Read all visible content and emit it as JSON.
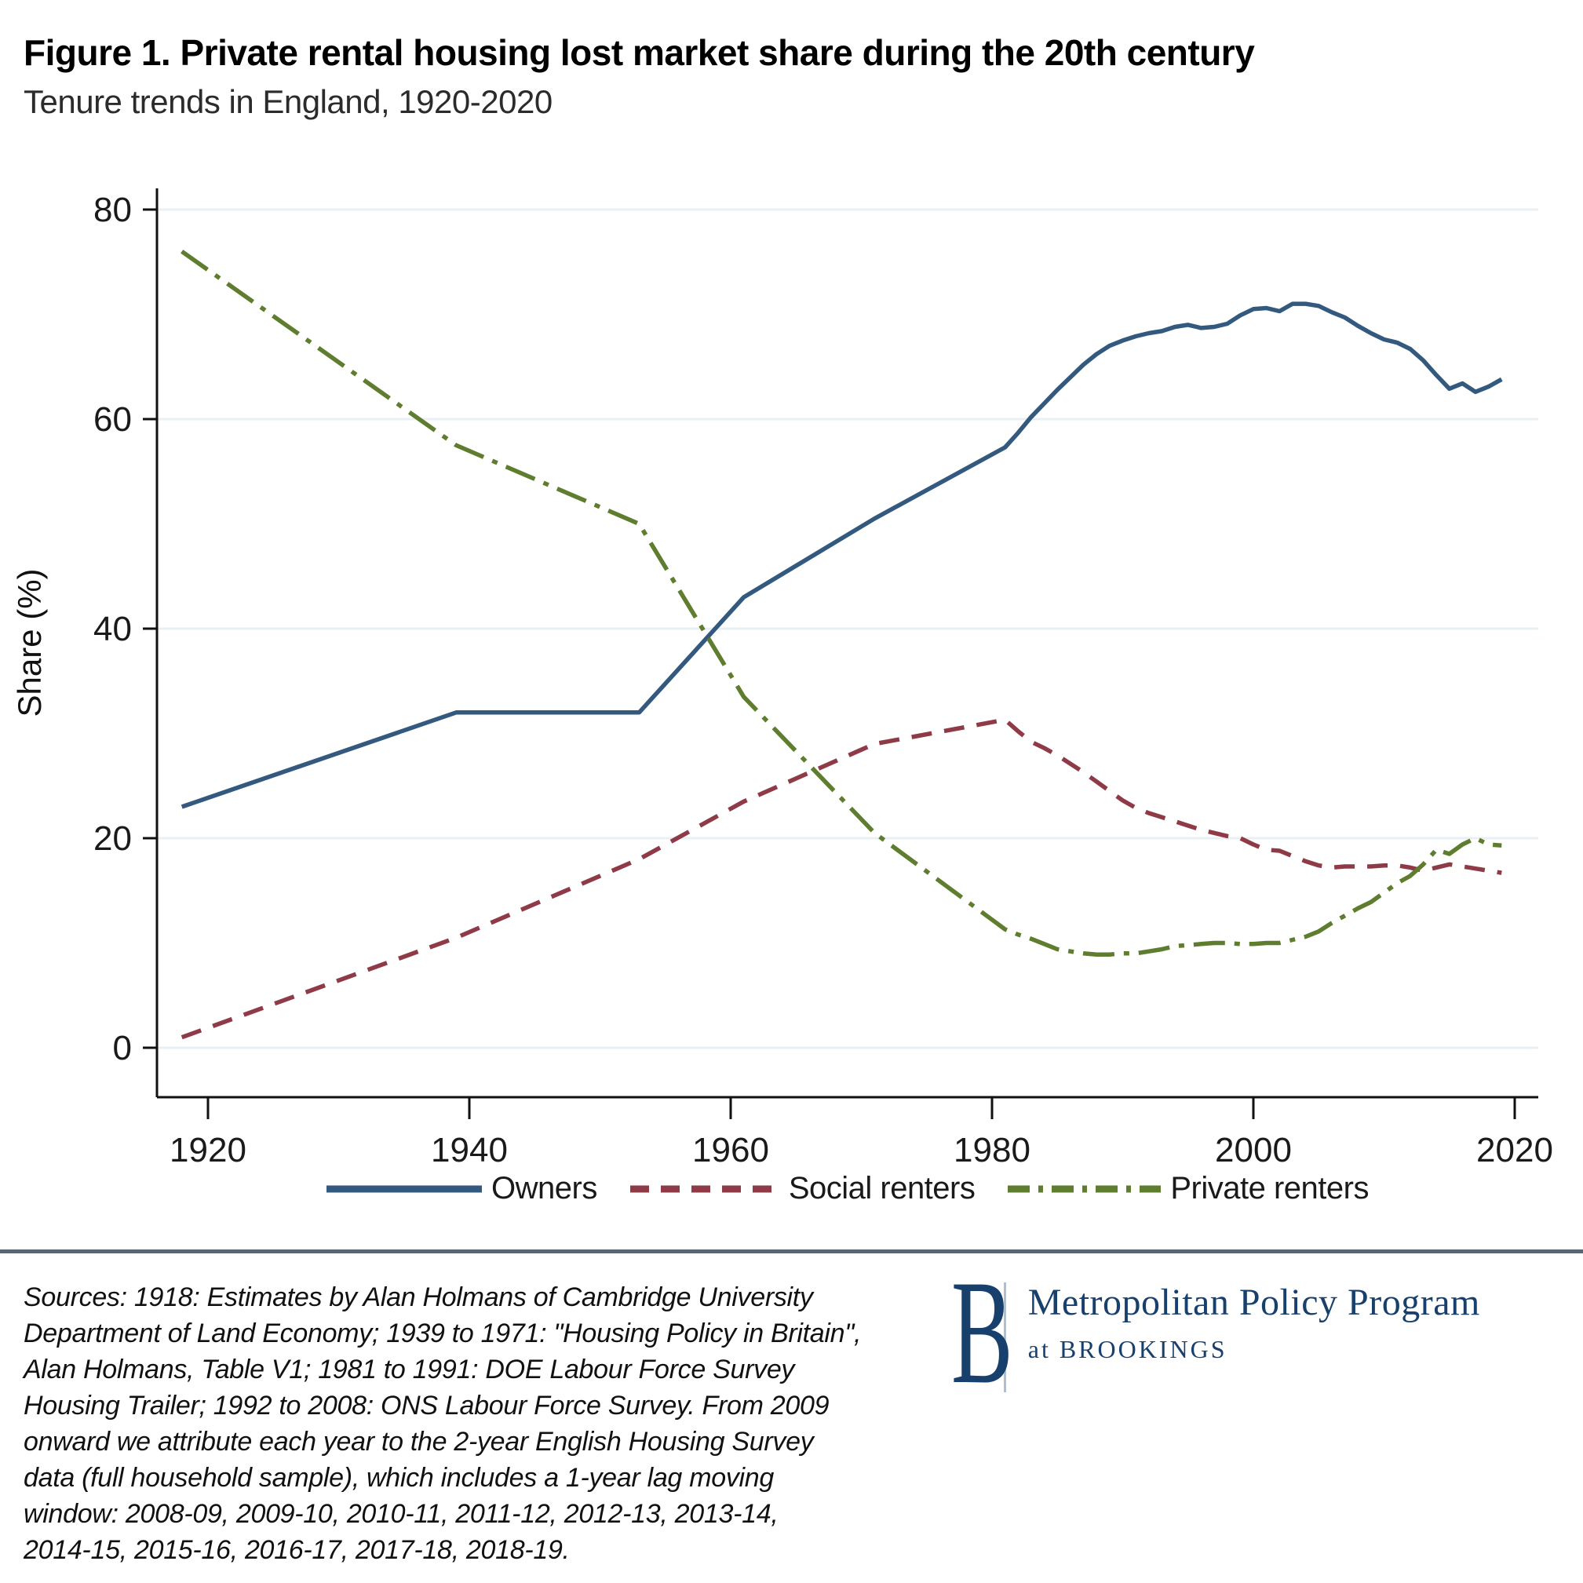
{
  "header": {
    "title": "Figure 1. Private rental housing lost market share during the 20th century",
    "subtitle": "Tenure trends in England, 1920-2020"
  },
  "chart_data": {
    "type": "line",
    "title": "Figure 1. Private rental housing lost market share during the 20th century",
    "subtitle": "Tenure trends in England, 1920-2020",
    "xlabel": "",
    "ylabel": "Share (%)",
    "x_ticks": [
      1920,
      1940,
      1960,
      1980,
      2000,
      2020
    ],
    "y_ticks": [
      0,
      20,
      40,
      60,
      80
    ],
    "xlim": [
      1916,
      2022
    ],
    "ylim": [
      0,
      80
    ],
    "grid": "horizontal-gridlines",
    "legend_position": "bottom",
    "colors": {
      "owners": "#33597f",
      "social_renters": "#8e3b47",
      "private_renters": "#5e7d2e",
      "gridline": "#e8f0f4",
      "axis": "#111111"
    },
    "series": [
      {
        "name": "Owners",
        "color": "#33597f",
        "style": "solid",
        "points": [
          [
            1918,
            23
          ],
          [
            1939,
            32
          ],
          [
            1953,
            32
          ],
          [
            1961,
            43
          ],
          [
            1971,
            50.5
          ],
          [
            1981,
            57.3
          ],
          [
            1982,
            58.7
          ],
          [
            1983,
            60.2
          ],
          [
            1984,
            61.5
          ],
          [
            1985,
            62.8
          ],
          [
            1986,
            64
          ],
          [
            1987,
            65.2
          ],
          [
            1988,
            66.2
          ],
          [
            1989,
            67
          ],
          [
            1990,
            67.5
          ],
          [
            1991,
            67.9
          ],
          [
            1992,
            68.2
          ],
          [
            1993,
            68.4
          ],
          [
            1994,
            68.8
          ],
          [
            1995,
            69
          ],
          [
            1996,
            68.7
          ],
          [
            1997,
            68.8
          ],
          [
            1998,
            69.1
          ],
          [
            1999,
            69.9
          ],
          [
            2000,
            70.5
          ],
          [
            2001,
            70.6
          ],
          [
            2002,
            70.3
          ],
          [
            2003,
            71
          ],
          [
            2004,
            71
          ],
          [
            2005,
            70.8
          ],
          [
            2006,
            70.2
          ],
          [
            2007,
            69.7
          ],
          [
            2008,
            68.9
          ],
          [
            2009,
            68.2
          ],
          [
            2010,
            67.6
          ],
          [
            2011,
            67.3
          ],
          [
            2012,
            66.7
          ],
          [
            2013,
            65.6
          ],
          [
            2014,
            64.2
          ],
          [
            2015,
            62.9
          ],
          [
            2016,
            63.4
          ],
          [
            2017,
            62.6
          ],
          [
            2018,
            63.1
          ],
          [
            2019,
            63.8
          ]
        ]
      },
      {
        "name": "Social renters",
        "color": "#8e3b47",
        "style": "dashed",
        "points": [
          [
            1918,
            1
          ],
          [
            1939,
            10.5
          ],
          [
            1953,
            18
          ],
          [
            1961,
            23.5
          ],
          [
            1971,
            29
          ],
          [
            1981,
            31.3
          ],
          [
            1982,
            30.2
          ],
          [
            1983,
            29.2
          ],
          [
            1984,
            28.6
          ],
          [
            1985,
            27.9
          ],
          [
            1986,
            27.1
          ],
          [
            1987,
            26.3
          ],
          [
            1988,
            25.4
          ],
          [
            1989,
            24.5
          ],
          [
            1990,
            23.6
          ],
          [
            1991,
            22.9
          ],
          [
            1992,
            22.4
          ],
          [
            1993,
            22
          ],
          [
            1994,
            21.6
          ],
          [
            1995,
            21.2
          ],
          [
            1996,
            20.8
          ],
          [
            1997,
            20.5
          ],
          [
            1998,
            20.2
          ],
          [
            1999,
            20
          ],
          [
            2000,
            19.4
          ],
          [
            2001,
            18.9
          ],
          [
            2002,
            18.8
          ],
          [
            2003,
            18.3
          ],
          [
            2004,
            17.8
          ],
          [
            2005,
            17.4
          ],
          [
            2006,
            17.2
          ],
          [
            2007,
            17.3
          ],
          [
            2008,
            17.3
          ],
          [
            2009,
            17.3
          ],
          [
            2010,
            17.4
          ],
          [
            2011,
            17.4
          ],
          [
            2012,
            17.2
          ],
          [
            2013,
            16.9
          ],
          [
            2014,
            17.2
          ],
          [
            2015,
            17.5
          ],
          [
            2016,
            17.3
          ],
          [
            2017,
            17.1
          ],
          [
            2018,
            16.9
          ],
          [
            2019,
            16.7
          ]
        ]
      },
      {
        "name": "Private renters",
        "color": "#5e7d2e",
        "style": "dash-dot",
        "points": [
          [
            1918,
            76
          ],
          [
            1939,
            57.5
          ],
          [
            1953,
            50
          ],
          [
            1961,
            33.5
          ],
          [
            1971,
            20.5
          ],
          [
            1981,
            11.3
          ],
          [
            1982,
            10.8
          ],
          [
            1983,
            10.4
          ],
          [
            1984,
            9.9
          ],
          [
            1985,
            9.4
          ],
          [
            1986,
            9.2
          ],
          [
            1987,
            9
          ],
          [
            1988,
            8.9
          ],
          [
            1989,
            8.9
          ],
          [
            1990,
            9
          ],
          [
            1991,
            9
          ],
          [
            1992,
            9.2
          ],
          [
            1993,
            9.4
          ],
          [
            1994,
            9.7
          ],
          [
            1995,
            9.8
          ],
          [
            1996,
            9.9
          ],
          [
            1997,
            10
          ],
          [
            1998,
            10
          ],
          [
            1999,
            9.9
          ],
          [
            2000,
            9.9
          ],
          [
            2001,
            10
          ],
          [
            2002,
            10
          ],
          [
            2003,
            10.3
          ],
          [
            2004,
            10.6
          ],
          [
            2005,
            11.1
          ],
          [
            2006,
            11.9
          ],
          [
            2007,
            12.6
          ],
          [
            2008,
            13.3
          ],
          [
            2009,
            13.9
          ],
          [
            2010,
            14.8
          ],
          [
            2011,
            15.7
          ],
          [
            2012,
            16.4
          ],
          [
            2013,
            17.5
          ],
          [
            2014,
            18.9
          ],
          [
            2015,
            18.5
          ],
          [
            2016,
            19.4
          ],
          [
            2017,
            20
          ],
          [
            2018,
            19.4
          ],
          [
            2019,
            19.3
          ]
        ]
      }
    ]
  },
  "footer": {
    "sources_text": "Sources: 1918: Estimates by Alan Holmans of Cambridge University\nDepartment of Land Economy; 1939 to 1971: \"Housing Policy in Britain\",\nAlan Holmans, Table V1; 1981 to 1991: DOE Labour Force Survey\nHousing Trailer; 1992 to 2008: ONS Labour Force Survey. From 2009\nonward we attribute each year to the 2-year English Housing Survey\ndata (full household sample), which includes a 1-year lag moving\nwindow: 2008-09, 2009-10, 2010-11, 2011-12, 2012-13, 2013-14,\n2014-15, 2015-16, 2016-17, 2017-18, 2018-19.",
    "logo": {
      "b": "B",
      "program": "Metropolitan Policy Program",
      "at": "at BROOKINGS"
    }
  }
}
